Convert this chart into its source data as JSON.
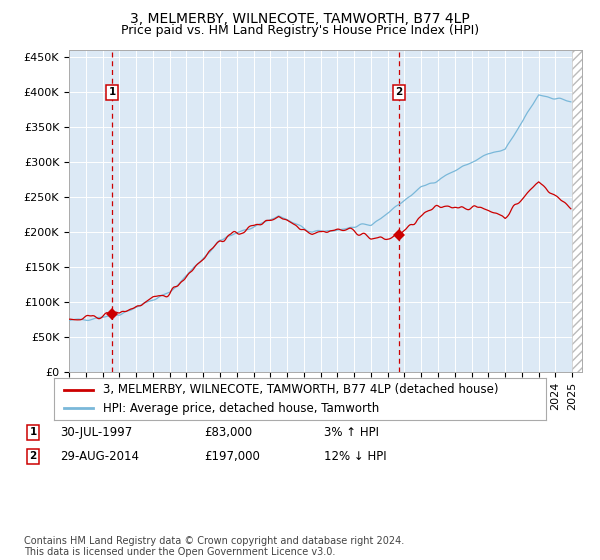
{
  "title": "3, MELMERBY, WILNECOTE, TAMWORTH, B77 4LP",
  "subtitle": "Price paid vs. HM Land Registry's House Price Index (HPI)",
  "ylabel_ticks": [
    "£0",
    "£50K",
    "£100K",
    "£150K",
    "£200K",
    "£250K",
    "£300K",
    "£350K",
    "£400K",
    "£450K"
  ],
  "ytick_values": [
    0,
    50000,
    100000,
    150000,
    200000,
    250000,
    300000,
    350000,
    400000,
    450000
  ],
  "ylim": [
    0,
    460000
  ],
  "sale1_date": "1997-07-30",
  "sale1_price": 83000,
  "sale2_date": "2014-08-29",
  "sale2_price": 197000,
  "hpi_color": "#7ab8d9",
  "property_color": "#cc0000",
  "marker_color": "#cc0000",
  "dashed_color": "#cc0000",
  "plot_bg_color": "#dce9f5",
  "grid_color": "#ffffff",
  "legend_line1": "3, MELMERBY, WILNECOTE, TAMWORTH, B77 4LP (detached house)",
  "legend_line2": "HPI: Average price, detached house, Tamworth",
  "footnote": "Contains HM Land Registry data © Crown copyright and database right 2024.\nThis data is licensed under the Open Government Licence v3.0.",
  "title_fontsize": 10,
  "subtitle_fontsize": 9,
  "tick_fontsize": 8,
  "legend_fontsize": 8.5,
  "footnote_fontsize": 7
}
